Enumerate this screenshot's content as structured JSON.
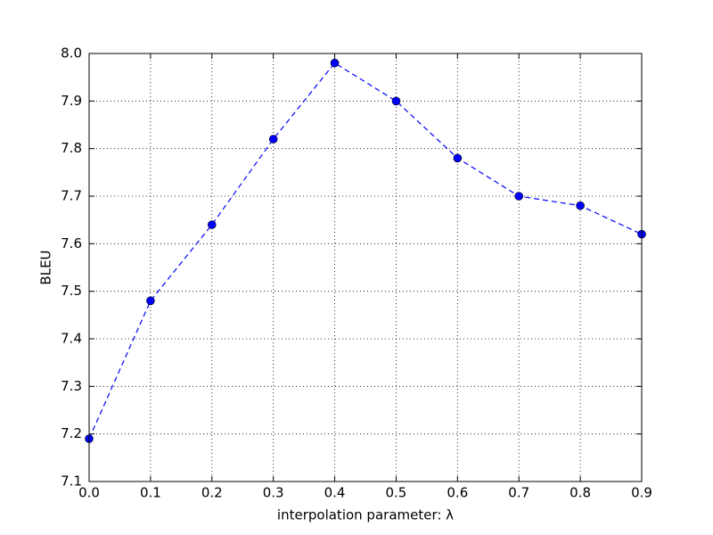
{
  "chart_data": {
    "type": "line",
    "xlabel": "interpolation parameter: λ",
    "ylabel": "BLEU",
    "x": [
      0.0,
      0.1,
      0.2,
      0.3,
      0.4,
      0.5,
      0.6,
      0.7,
      0.8,
      0.9
    ],
    "values": [
      7.19,
      7.48,
      7.64,
      7.82,
      7.98,
      7.9,
      7.78,
      7.7,
      7.68,
      7.62
    ],
    "color": "#0000ff",
    "line_style": "dashed",
    "marker": "circle",
    "xlim": [
      0,
      0.9
    ],
    "ylim": [
      7.1,
      8.0
    ],
    "xticks": [
      {
        "value": 0,
        "label": "0.0"
      },
      0.1,
      0.2,
      0.3,
      0.4,
      0.5,
      0.6,
      0.7,
      0.8,
      0.9
    ],
    "yticks": [
      7.1,
      7.2,
      7.3,
      7.4,
      7.5,
      7.6,
      7.7,
      7.8,
      7.9,
      {
        "value": 8,
        "label": "8.0"
      }
    ],
    "grid": true
  }
}
